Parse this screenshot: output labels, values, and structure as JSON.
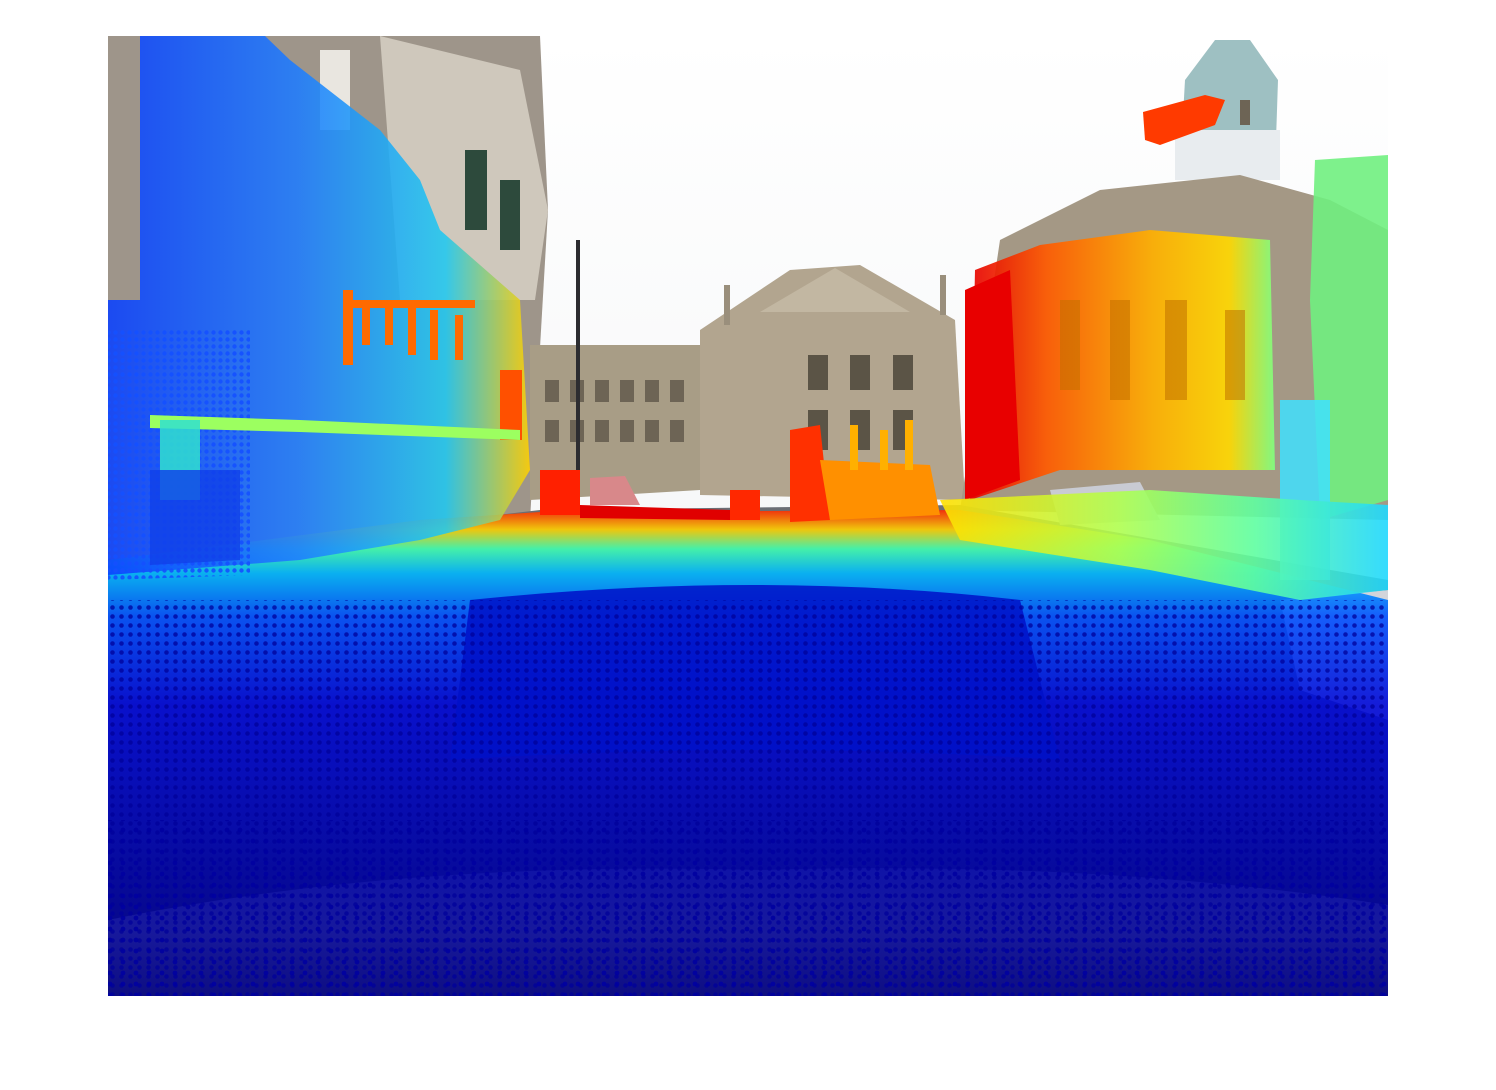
{
  "scene": {
    "type": "lidar-projection-on-camera-image",
    "colormap": "jet",
    "colormap_stops": [
      "#00007f",
      "#0000ff",
      "#007fff",
      "#00ffff",
      "#7fff7f",
      "#ffff00",
      "#ff7f00",
      "#ff0000",
      "#7f0000"
    ],
    "sky_color": "#f4f6f8",
    "road_color": "#4a4d55",
    "stone_color": "#a99e8c",
    "dome_color": "#8fb3b8",
    "hood_color": "#c8cad2"
  }
}
